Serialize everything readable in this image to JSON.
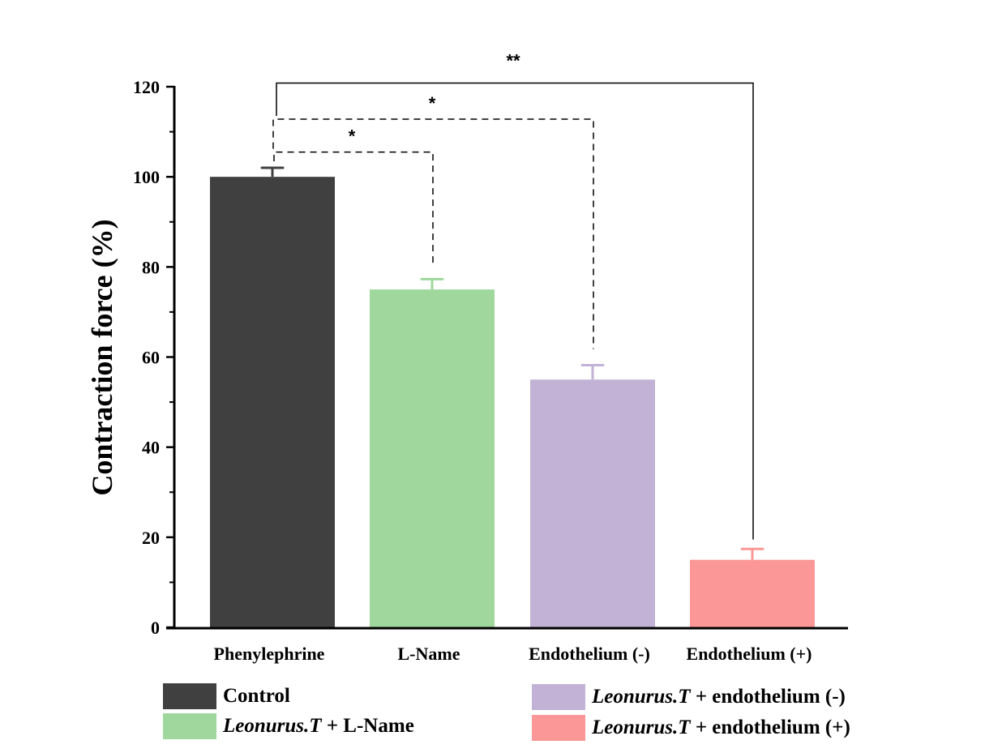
{
  "chart_data": {
    "type": "bar",
    "title": "",
    "xlabel": "",
    "ylabel": "Contraction force (%)",
    "ylim": [
      0,
      120
    ],
    "yticks": [
      0,
      20,
      40,
      60,
      80,
      100,
      120
    ],
    "yminor_step": 10,
    "grid": false,
    "categories": [
      "Phenylephrine",
      "L-Name",
      "Endothelium (-)",
      "Endothelium (+)"
    ],
    "values": [
      100,
      75,
      55,
      15
    ],
    "errors": [
      2,
      2.3,
      3.2,
      2.4
    ],
    "colors": [
      "#404040",
      "#9fd79c",
      "#c2b2d6",
      "#fb9797"
    ],
    "legend_position": "bottom",
    "legend": [
      {
        "italic": "",
        "text": "Control",
        "color": "#404040"
      },
      {
        "italic": "Leonurus.T",
        "text": " + L-Name",
        "color": "#9fd79c"
      },
      {
        "italic": "Leonurus.T",
        "text": " + endothelium (-)",
        "color": "#c2b2d6"
      },
      {
        "italic": "Leonurus.T",
        "text": " + endothelium (+)",
        "color": "#fb9797"
      }
    ],
    "significance": [
      {
        "from": 0,
        "to": 1,
        "label": "*",
        "style": "dashed",
        "level": 105.5
      },
      {
        "from": 0,
        "to": 2,
        "label": "*",
        "style": "dashed",
        "level": 112.8
      },
      {
        "from": 0,
        "to": 3,
        "label": "**",
        "style": "solid",
        "level": 120.8
      }
    ]
  }
}
